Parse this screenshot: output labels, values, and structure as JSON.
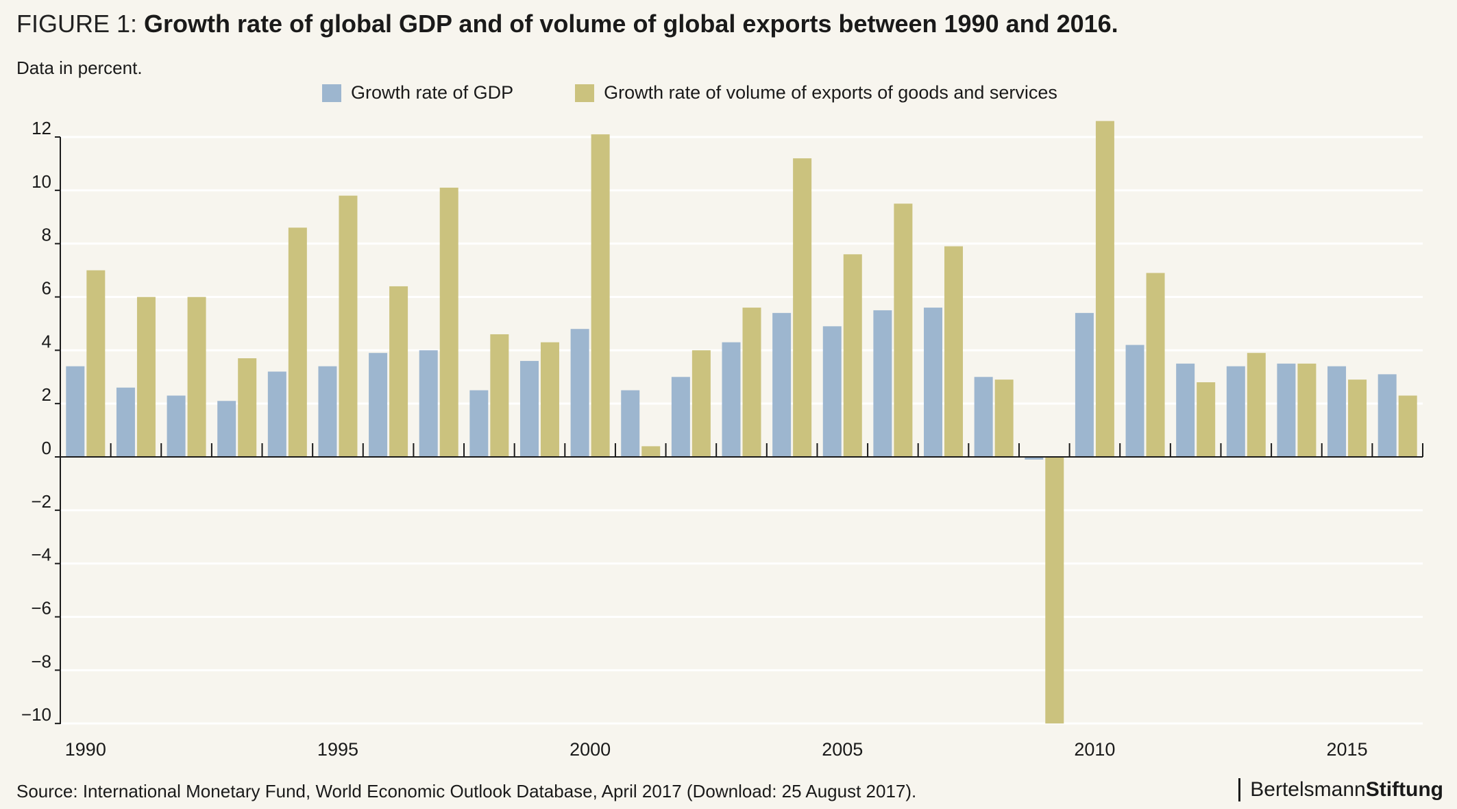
{
  "header": {
    "title_lead": "FIGURE 1:",
    "title_main": "Growth rate of global GDP and of volume of global exports between 1990 and 2016.",
    "subtitle": "Data in percent."
  },
  "footer": {
    "source": "Source: International Monetary Fund, World Economic Outlook Database, April 2017 (Download: 25 August 2017).",
    "logo_regular": "Bertelsmann",
    "logo_bold": "Stiftung"
  },
  "colors": {
    "gdp": "#9db6cf",
    "exports": "#cbc27e",
    "background": "#f7f5ee",
    "axis": "#1a1a1a",
    "grid": "#ffffff"
  },
  "chart_data": {
    "type": "bar",
    "categories": [
      "1990",
      "1991",
      "1992",
      "1993",
      "1994",
      "1995",
      "1996",
      "1997",
      "1998",
      "1999",
      "2000",
      "2001",
      "2002",
      "2003",
      "2004",
      "2005",
      "2006",
      "2007",
      "2008",
      "2009",
      "2010",
      "2011",
      "2012",
      "2013",
      "2014",
      "2015",
      "2016"
    ],
    "x_tick_labels": [
      "1990",
      "1995",
      "2000",
      "2005",
      "2010",
      "2015"
    ],
    "series": [
      {
        "name": "Growth rate of GDP",
        "values": [
          3.4,
          2.6,
          2.3,
          2.1,
          3.2,
          3.4,
          3.9,
          4.0,
          2.5,
          3.6,
          4.8,
          2.5,
          3.0,
          4.3,
          5.4,
          4.9,
          5.5,
          5.6,
          3.0,
          -0.1,
          5.4,
          4.2,
          3.5,
          3.4,
          3.5,
          3.4,
          3.1
        ]
      },
      {
        "name": "Growth rate of volume of exports of goods and services",
        "values": [
          7.0,
          6.0,
          6.0,
          3.7,
          8.6,
          9.8,
          6.4,
          10.1,
          4.6,
          4.3,
          12.1,
          0.4,
          4.0,
          5.6,
          11.2,
          7.6,
          9.5,
          7.9,
          2.9,
          -10.5,
          12.6,
          6.9,
          2.8,
          3.9,
          3.5,
          2.9,
          2.3
        ]
      }
    ],
    "y_ticks": [
      12,
      10,
      8,
      6,
      4,
      2,
      0,
      -2,
      -4,
      -6,
      -8,
      -10
    ],
    "y_tick_labels": [
      "12",
      "10",
      "8",
      "6",
      "4",
      "2",
      "0",
      "−2",
      "−4",
      "−6",
      "−8",
      "−10"
    ],
    "ylim": [
      -10,
      12.6
    ],
    "grid": true,
    "legend": "top-center"
  }
}
